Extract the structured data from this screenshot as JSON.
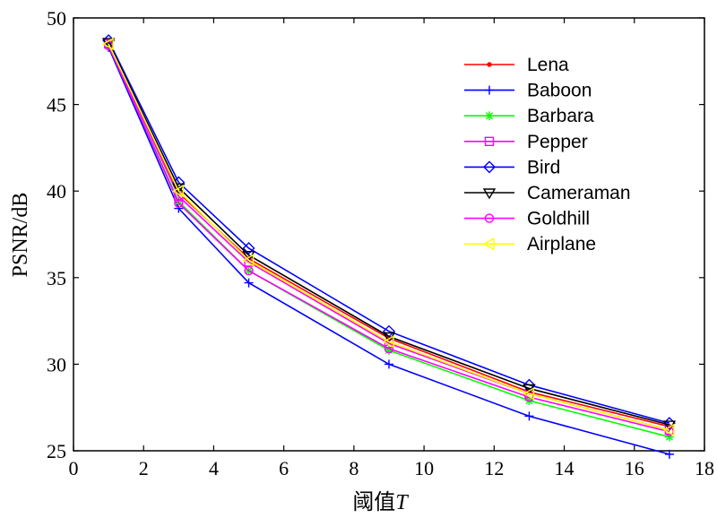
{
  "chart_data": {
    "type": "line",
    "xlabel": "阈值",
    "xlabel_italic": "T",
    "ylabel": "PSNR/dB",
    "xlim": [
      0,
      18
    ],
    "ylim": [
      25,
      50
    ],
    "xticks": [
      "0",
      "2",
      "4",
      "6",
      "8",
      "10",
      "12",
      "14",
      "16",
      "18"
    ],
    "yticks": [
      "25",
      "30",
      "35",
      "40",
      "45",
      "50"
    ],
    "grid": false,
    "legend_position": "top-right",
    "x": [
      1,
      3,
      5,
      9,
      13,
      17
    ],
    "series": [
      {
        "name": "Lena",
        "color": "#ff0000",
        "marker": "dot",
        "values": [
          48.6,
          39.9,
          36.1,
          31.5,
          28.4,
          26.4
        ]
      },
      {
        "name": "Baboon",
        "color": "#0000ff",
        "marker": "plus",
        "values": [
          48.3,
          39.0,
          34.7,
          30.0,
          27.0,
          24.8
        ]
      },
      {
        "name": "Barbara",
        "color": "#00ff00",
        "marker": "asterisk",
        "values": [
          48.4,
          39.4,
          35.4,
          30.8,
          27.9,
          25.8
        ]
      },
      {
        "name": "Pepper",
        "color": "#ff00ff",
        "marker": "square",
        "values": [
          48.5,
          39.7,
          35.9,
          31.2,
          28.3,
          26.2
        ]
      },
      {
        "name": "Bird",
        "color": "#0000ff",
        "marker": "diamond",
        "values": [
          48.7,
          40.5,
          36.7,
          31.9,
          28.8,
          26.6
        ]
      },
      {
        "name": "Cameraman",
        "color": "#000000",
        "marker": "tri-down",
        "values": [
          48.6,
          40.2,
          36.3,
          31.6,
          28.6,
          26.5
        ]
      },
      {
        "name": "Goldhill",
        "color": "#ff00ff",
        "marker": "circle",
        "values": [
          48.4,
          39.3,
          35.4,
          30.9,
          28.1,
          26.1
        ]
      },
      {
        "name": "Airplane",
        "color": "#ffff00",
        "marker": "tri-left",
        "values": [
          48.5,
          40.0,
          36.0,
          31.3,
          28.3,
          26.2
        ]
      }
    ]
  }
}
